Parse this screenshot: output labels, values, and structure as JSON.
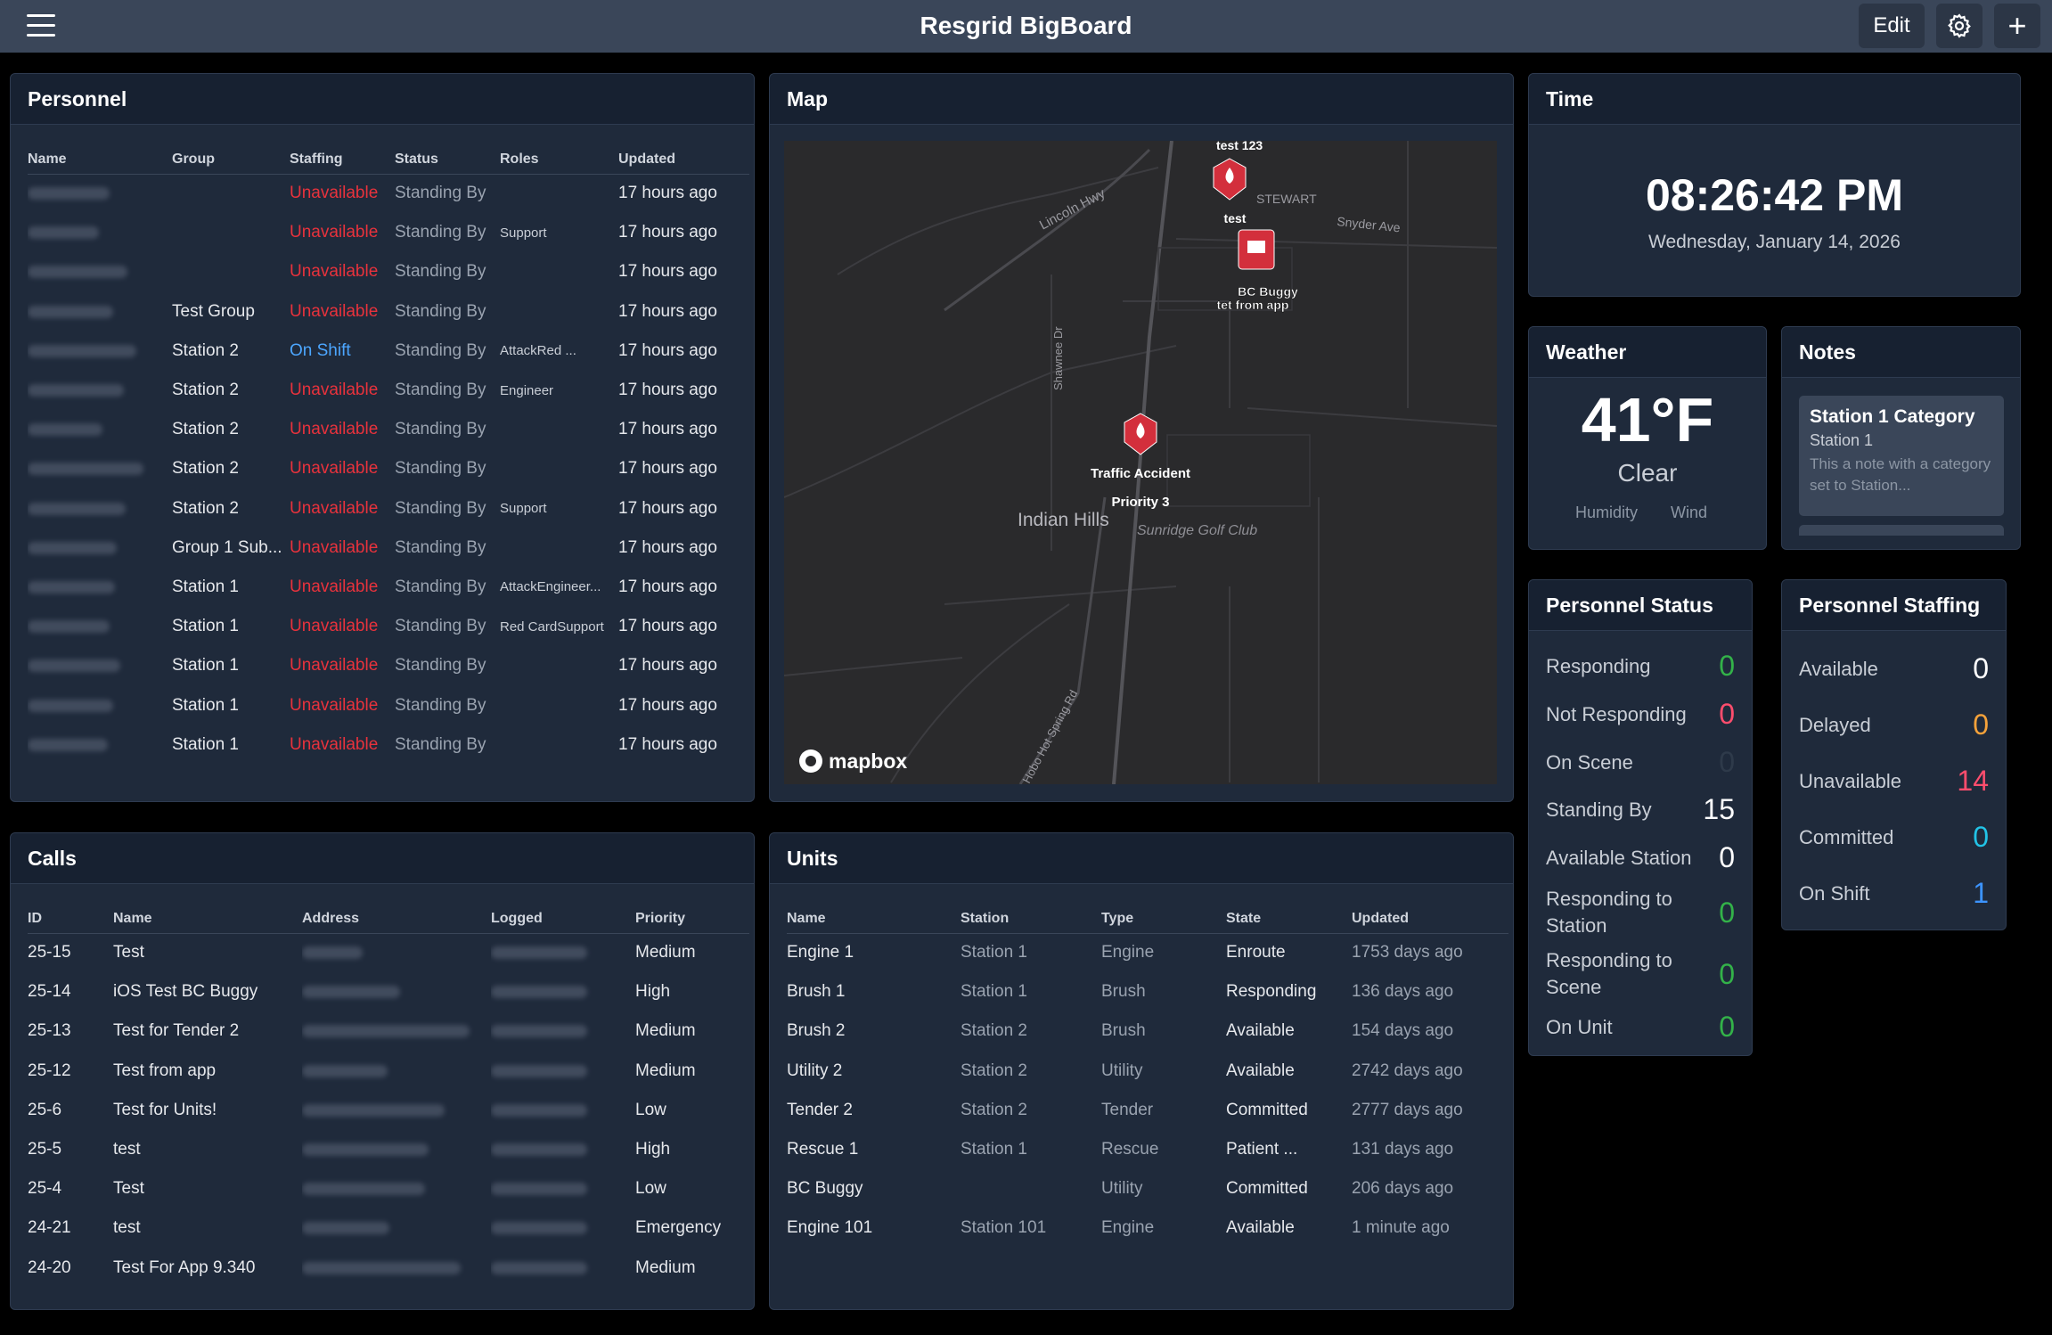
{
  "app": {
    "title": "Resgrid BigBoard",
    "edit_label": "Edit",
    "icons": [
      "menu-icon",
      "gear-icon",
      "plus-icon"
    ]
  },
  "personnel": {
    "title": "Personnel",
    "columns": [
      "Name",
      "Group",
      "Staffing",
      "Status",
      "Roles",
      "Updated"
    ],
    "rows": [
      {
        "group": "",
        "staffing": "Unavailable",
        "status": "Standing By",
        "roles": "",
        "updated": "17 hours ago"
      },
      {
        "group": "",
        "staffing": "Unavailable",
        "status": "Standing By",
        "roles": "Support",
        "updated": "17 hours ago"
      },
      {
        "group": "",
        "staffing": "Unavailable",
        "status": "Standing By",
        "roles": "",
        "updated": "17 hours ago"
      },
      {
        "group": "Test Group",
        "staffing": "Unavailable",
        "status": "Standing By",
        "roles": "",
        "updated": "17 hours ago"
      },
      {
        "group": "Station 2",
        "staffing": "On Shift",
        "status": "Standing By",
        "roles": "AttackRed ...",
        "updated": "17 hours ago"
      },
      {
        "group": "Station 2",
        "staffing": "Unavailable",
        "status": "Standing By",
        "roles": "Engineer",
        "updated": "17 hours ago"
      },
      {
        "group": "Station 2",
        "staffing": "Unavailable",
        "status": "Standing By",
        "roles": "",
        "updated": "17 hours ago"
      },
      {
        "group": "Station 2",
        "staffing": "Unavailable",
        "status": "Standing By",
        "roles": "",
        "updated": "17 hours ago"
      },
      {
        "group": "Station 2",
        "staffing": "Unavailable",
        "status": "Standing By",
        "roles": "Support",
        "updated": "17 hours ago"
      },
      {
        "group": "Group 1 Sub...",
        "staffing": "Unavailable",
        "status": "Standing By",
        "roles": "",
        "updated": "17 hours ago"
      },
      {
        "group": "Station 1",
        "staffing": "Unavailable",
        "status": "Standing By",
        "roles": "AttackEngineer...",
        "updated": "17 hours ago"
      },
      {
        "group": "Station 1",
        "staffing": "Unavailable",
        "status": "Standing By",
        "roles": "Red CardSupport",
        "updated": "17 hours ago"
      },
      {
        "group": "Station 1",
        "staffing": "Unavailable",
        "status": "Standing By",
        "roles": "",
        "updated": "17 hours ago"
      },
      {
        "group": "Station 1",
        "staffing": "Unavailable",
        "status": "Standing By",
        "roles": "",
        "updated": "17 hours ago"
      },
      {
        "group": "Station 1",
        "staffing": "Unavailable",
        "status": "Standing By",
        "roles": "",
        "updated": "17 hours ago"
      }
    ]
  },
  "map": {
    "title": "Map",
    "attribution": "mapbox",
    "markers": [
      "test 123",
      "test",
      "BC Buggy",
      "tet from app",
      "Traffic Accident",
      "Priority 3"
    ],
    "places": [
      "Indian Hills",
      "Sunridge Golf Club",
      "Lincoln Hwy",
      "Snyder Ave",
      "Shawnee Dr",
      "Hobo Hot Spring Rd",
      "STEWART"
    ]
  },
  "time": {
    "title": "Time",
    "clock": "08:26:42 PM",
    "date": "Wednesday, January 14, 2026"
  },
  "weather": {
    "title": "Weather",
    "temp": "41°F",
    "condition": "Clear",
    "humidity_label": "Humidity",
    "wind_label": "Wind"
  },
  "notes": {
    "title": "Notes",
    "card": {
      "title": "Station 1 Category",
      "subtitle": "Station 1",
      "body": "This a note with a category set to Station..."
    }
  },
  "personnel_status": {
    "title": "Personnel Status",
    "items": [
      {
        "label": "Responding",
        "value": "0",
        "color": "#33b249"
      },
      {
        "label": "Not Responding",
        "value": "0",
        "color": "#ff4d6d"
      },
      {
        "label": "On Scene",
        "value": "0",
        "color": "#2e3a4a"
      },
      {
        "label": "Standing By",
        "value": "15",
        "color": "#ffffff"
      },
      {
        "label": "Available Station",
        "value": "0",
        "color": "#ffffff"
      },
      {
        "label": "Responding to Station",
        "value": "0",
        "color": "#33b249"
      },
      {
        "label": "Responding to Scene",
        "value": "0",
        "color": "#33b249"
      },
      {
        "label": "On Unit",
        "value": "0",
        "color": "#33b249"
      }
    ]
  },
  "personnel_staffing": {
    "title": "Personnel Staffing",
    "items": [
      {
        "label": "Available",
        "value": "0",
        "color": "#ffffff"
      },
      {
        "label": "Delayed",
        "value": "0",
        "color": "#f5a23a"
      },
      {
        "label": "Unavailable",
        "value": "14",
        "color": "#ff4d6d"
      },
      {
        "label": "Committed",
        "value": "0",
        "color": "#22c3e6"
      },
      {
        "label": "On Shift",
        "value": "1",
        "color": "#3c94ff"
      }
    ]
  },
  "calls": {
    "title": "Calls",
    "columns": [
      "ID",
      "Name",
      "Address",
      "Logged",
      "Priority"
    ],
    "rows": [
      {
        "id": "25-15",
        "name": "Test",
        "priority": "Medium"
      },
      {
        "id": "25-14",
        "name": "iOS Test BC Buggy",
        "priority": "High"
      },
      {
        "id": "25-13",
        "name": "Test for Tender 2",
        "priority": "Medium"
      },
      {
        "id": "25-12",
        "name": "Test from app",
        "priority": "Medium"
      },
      {
        "id": "25-6",
        "name": "Test for Units!",
        "priority": "Low"
      },
      {
        "id": "25-5",
        "name": "test",
        "priority": "High"
      },
      {
        "id": "25-4",
        "name": "Test",
        "priority": "Low"
      },
      {
        "id": "24-21",
        "name": "test",
        "priority": "Emergency"
      },
      {
        "id": "24-20",
        "name": "Test For App 9.340",
        "priority": "Medium"
      }
    ]
  },
  "units": {
    "title": "Units",
    "columns": [
      "Name",
      "Station",
      "Type",
      "State",
      "Updated"
    ],
    "rows": [
      {
        "name": "Engine 1",
        "station": "Station 1",
        "type": "Engine",
        "state": "Enroute",
        "updated": "1753 days ago"
      },
      {
        "name": "Brush 1",
        "station": "Station 1",
        "type": "Brush",
        "state": "Responding",
        "updated": "136 days ago"
      },
      {
        "name": "Brush 2",
        "station": "Station 2",
        "type": "Brush",
        "state": "Available",
        "updated": "154 days ago"
      },
      {
        "name": "Utility 2",
        "station": "Station 2",
        "type": "Utility",
        "state": "Available",
        "updated": "2742 days ago"
      },
      {
        "name": "Tender 2",
        "station": "Station 2",
        "type": "Tender",
        "state": "Committed",
        "updated": "2777 days ago"
      },
      {
        "name": "Rescue 1",
        "station": "Station 1",
        "type": "Rescue",
        "state": "Patient ...",
        "updated": "131 days ago"
      },
      {
        "name": "BC Buggy",
        "station": "",
        "type": "Utility",
        "state": "Committed",
        "updated": "206 days ago"
      },
      {
        "name": "Engine 101",
        "station": "Station 101",
        "type": "Engine",
        "state": "Available",
        "updated": "1 minute ago"
      }
    ]
  }
}
